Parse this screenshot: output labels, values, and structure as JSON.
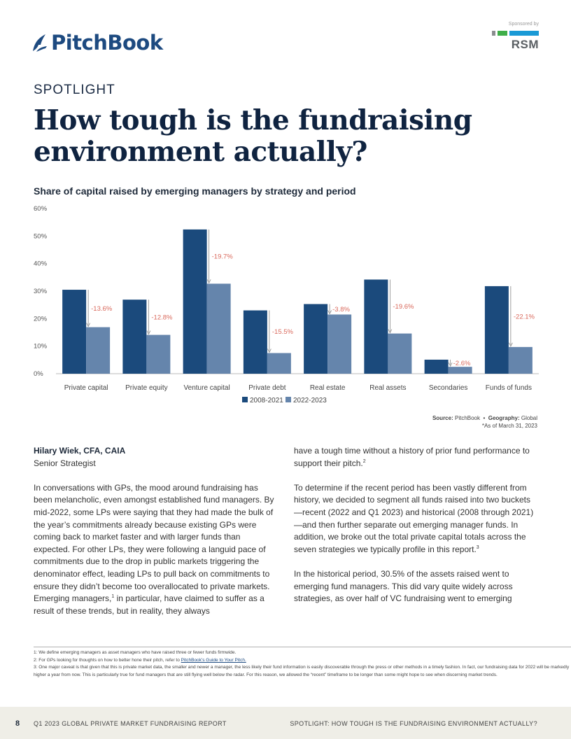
{
  "header": {
    "brand": "PitchBook",
    "sponsor_label": "Sponsored by",
    "sponsor_name": "RSM",
    "brand_color": "#1d4a80"
  },
  "article": {
    "kicker": "SPOTLIGHT",
    "title": "How tough is the fundraising environment actually?"
  },
  "chart_data": {
    "type": "bar",
    "title": "Share of capital raised by emerging managers by strategy and period",
    "categories": [
      "Private capital",
      "Private equity",
      "Venture capital",
      "Private debt",
      "Real estate",
      "Real assets",
      "Secondaries",
      "Funds of funds"
    ],
    "series": [
      {
        "name": "2008-2021",
        "color": "#1b4a7c",
        "values": [
          30.5,
          26.9,
          52.4,
          23.0,
          25.3,
          34.2,
          5.1,
          31.8
        ]
      },
      {
        "name": "2022-2023",
        "color": "#6585ac",
        "values": [
          16.9,
          14.1,
          32.7,
          7.5,
          21.5,
          14.6,
          2.5,
          9.7
        ]
      }
    ],
    "annotations": [
      "-13.6%",
      "-12.8%",
      "-19.7%",
      "-15.5%",
      "-3.8%",
      "-19.6%",
      "-2.6%",
      "-22.1%"
    ],
    "yticks": [
      "0%",
      "10%",
      "20%",
      "30%",
      "40%",
      "50%",
      "60%"
    ],
    "ylim": [
      0,
      60
    ],
    "legend_position": "bottom-center"
  },
  "source": {
    "source_label": "Source:",
    "source_value": "PitchBook",
    "separator": "•",
    "geo_label": "Geography:",
    "geo_value": "Global",
    "asof": "*As of March 31, 2023"
  },
  "author": {
    "name": "Hilary Wiek, CFA, CAIA",
    "role": "Senior Strategist"
  },
  "body": {
    "p1a": "In conversations with GPs, the mood around fundraising has been melancholic, even amongst established fund managers. By mid-2022, some LPs were saying that they had made the bulk of the year’s commitments already because existing GPs were coming back to market faster and with larger funds than expected. For other LPs, they were following a languid pace of commitments due to the drop in public markets triggering the denominator effect, leading LPs to pull back on commitments to ensure they didn’t become too overallocated to private markets. Emerging managers,",
    "p1_sup": "1",
    "p1b": " in particular, have claimed to suffer as a result of these trends, but in reality, they always have a tough time without a history of prior fund performance to support their pitch.",
    "p1_sup2": "2",
    "p2": "To determine if the recent period has been vastly different from history, we decided to segment all funds raised into two buckets—recent (2022 and Q1 2023) and historical (2008 through 2021)—and then further separate out emerging manager funds. In addition, we broke out the total private capital totals across the seven strategies we typically profile in this report.",
    "p2_sup": "3",
    "p3": "In the historical period, 30.5% of the assets raised went to emerging fund managers. This did vary quite widely across strategies, as over half of VC fundraising went to emerging"
  },
  "footnotes": {
    "f1": "1: We define emerging managers as asset managers who have raised three or fewer funds firmwide.",
    "f2_text": "2: For GPs looking for thoughts on how to better hone their pitch, refer to ",
    "f2_link": "PitchBook’s Guide to Your Pitch.",
    "f3": "3: One major caveat is that given that this is private market data, the smaller and newer a manager, the less likely their fund information is easily discoverable through the press or other methods in a timely fashion. In fact, our fundraising data for 2022 will be markedly higher a year from now. This is particularly true for fund managers that are still flying well below the radar. For this reason, we allowed the “recent” timeframe to be longer than some might hope to see when discerning market trends."
  },
  "footer": {
    "page": "8",
    "report": "Q1 2023 GLOBAL PRIVATE MARKET FUNDRAISING REPORT",
    "section": "SPOTLIGHT: HOW TOUGH IS THE FUNDRAISING ENVIRONMENT ACTUALLY?"
  }
}
